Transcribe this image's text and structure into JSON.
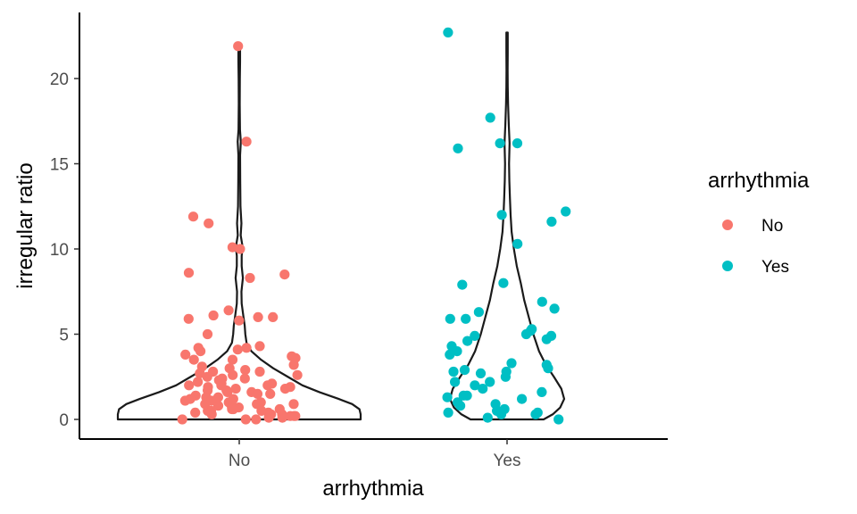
{
  "chart_data": {
    "type": "violin",
    "xlabel": "arrhythmia",
    "ylabel": "irregular ratio",
    "categories": [
      "No",
      "Yes"
    ],
    "yticks": [
      0,
      5,
      10,
      15,
      20
    ],
    "ylim": [
      -1.1,
      23.3
    ],
    "grid": false,
    "legend": {
      "title": "arrhythmia",
      "position": "right",
      "entries": [
        {
          "label": "No",
          "color": "#F8766D"
        },
        {
          "label": "Yes",
          "color": "#00BFC4"
        }
      ]
    },
    "violins": [
      {
        "category": "No",
        "outline_color": "#1a1a1a",
        "density_profile": [
          [
            0.0,
            1.0
          ],
          [
            0.3,
            1.0
          ],
          [
            0.6,
            0.99
          ],
          [
            0.9,
            0.93
          ],
          [
            1.2,
            0.82
          ],
          [
            1.6,
            0.66
          ],
          [
            2.0,
            0.52
          ],
          [
            2.5,
            0.4
          ],
          [
            3.0,
            0.28
          ],
          [
            3.5,
            0.18
          ],
          [
            4.0,
            0.1
          ],
          [
            4.5,
            0.06
          ],
          [
            5.0,
            0.05
          ],
          [
            5.5,
            0.045
          ],
          [
            6.0,
            0.035
          ],
          [
            6.8,
            0.02
          ],
          [
            7.5,
            0.018
          ],
          [
            8.3,
            0.03
          ],
          [
            9.0,
            0.02
          ],
          [
            9.6,
            0.02
          ],
          [
            10.1,
            0.028
          ],
          [
            10.8,
            0.012
          ],
          [
            11.5,
            0.018
          ],
          [
            12.5,
            0.01
          ],
          [
            14.0,
            0.008
          ],
          [
            15.5,
            0.007
          ],
          [
            16.3,
            0.013
          ],
          [
            17.0,
            0.006
          ],
          [
            18.5,
            0.004
          ],
          [
            20.0,
            0.005
          ],
          [
            21.0,
            0.007
          ],
          [
            21.9,
            0.007
          ]
        ]
      },
      {
        "category": "Yes",
        "outline_color": "#1a1a1a",
        "density_profile": [
          [
            0.0,
            0.64
          ],
          [
            0.3,
            0.8
          ],
          [
            0.7,
            0.93
          ],
          [
            1.2,
            1.0
          ],
          [
            1.8,
            0.95
          ],
          [
            2.5,
            0.82
          ],
          [
            3.2,
            0.68
          ],
          [
            4.0,
            0.56
          ],
          [
            5.0,
            0.46
          ],
          [
            6.0,
            0.38
          ],
          [
            7.0,
            0.3
          ],
          [
            8.0,
            0.24
          ],
          [
            9.0,
            0.17
          ],
          [
            10.0,
            0.12
          ],
          [
            11.0,
            0.08
          ],
          [
            12.0,
            0.062
          ],
          [
            13.0,
            0.05
          ],
          [
            14.0,
            0.04
          ],
          [
            15.0,
            0.035
          ],
          [
            16.2,
            0.044
          ],
          [
            17.3,
            0.03
          ],
          [
            18.5,
            0.018
          ],
          [
            19.5,
            0.012
          ],
          [
            20.5,
            0.01
          ],
          [
            21.5,
            0.012
          ],
          [
            22.7,
            0.012
          ]
        ]
      }
    ],
    "points": [
      {
        "group": "No",
        "values": [
          21.9,
          16.3,
          11.9,
          11.5,
          10.1,
          10.0,
          8.6,
          8.5,
          8.3,
          6.4,
          6.1,
          6.0,
          6.0,
          5.9,
          5.8,
          5.0,
          4.3,
          4.2,
          4.2,
          4.1,
          4.0,
          3.8,
          3.7,
          3.6,
          3.5,
          3.5,
          3.2,
          3.1,
          3.0,
          2.9,
          2.8,
          2.8,
          2.7,
          2.6,
          2.6,
          2.5,
          2.4,
          2.3,
          2.2,
          2.1,
          2.1,
          2.0,
          2.0,
          1.9,
          1.9,
          1.8,
          1.8,
          1.7,
          1.6,
          1.6,
          1.5,
          1.5,
          1.4,
          1.3,
          1.2,
          1.2,
          1.1,
          1.0,
          1.0,
          0.9,
          0.9,
          0.8,
          0.8,
          0.7,
          0.7,
          0.6,
          0.6,
          0.6,
          0.5,
          0.5,
          0.4,
          0.4,
          0.3,
          0.3,
          0.3,
          0.2,
          0.2,
          0.1,
          0.1,
          0.0,
          0.0,
          0.0,
          1.3,
          2.4,
          0.9,
          1.7,
          0.5,
          2.0,
          1.1,
          0.2
        ]
      },
      {
        "group": "Yes",
        "values": [
          22.7,
          17.7,
          16.2,
          16.2,
          15.9,
          12.2,
          12.0,
          11.6,
          10.3,
          8.0,
          7.9,
          6.9,
          6.5,
          6.3,
          5.9,
          5.9,
          5.3,
          5.2,
          5.0,
          4.9,
          4.9,
          4.7,
          4.6,
          4.3,
          4.0,
          3.8,
          3.3,
          3.2,
          3.0,
          2.9,
          2.8,
          2.8,
          2.7,
          2.5,
          2.2,
          2.2,
          2.0,
          1.8,
          1.6,
          1.4,
          1.4,
          1.3,
          1.2,
          1.0,
          0.9,
          0.8,
          0.6,
          0.5,
          0.4,
          0.4,
          0.3,
          0.3,
          0.1,
          0.0
        ]
      }
    ]
  }
}
